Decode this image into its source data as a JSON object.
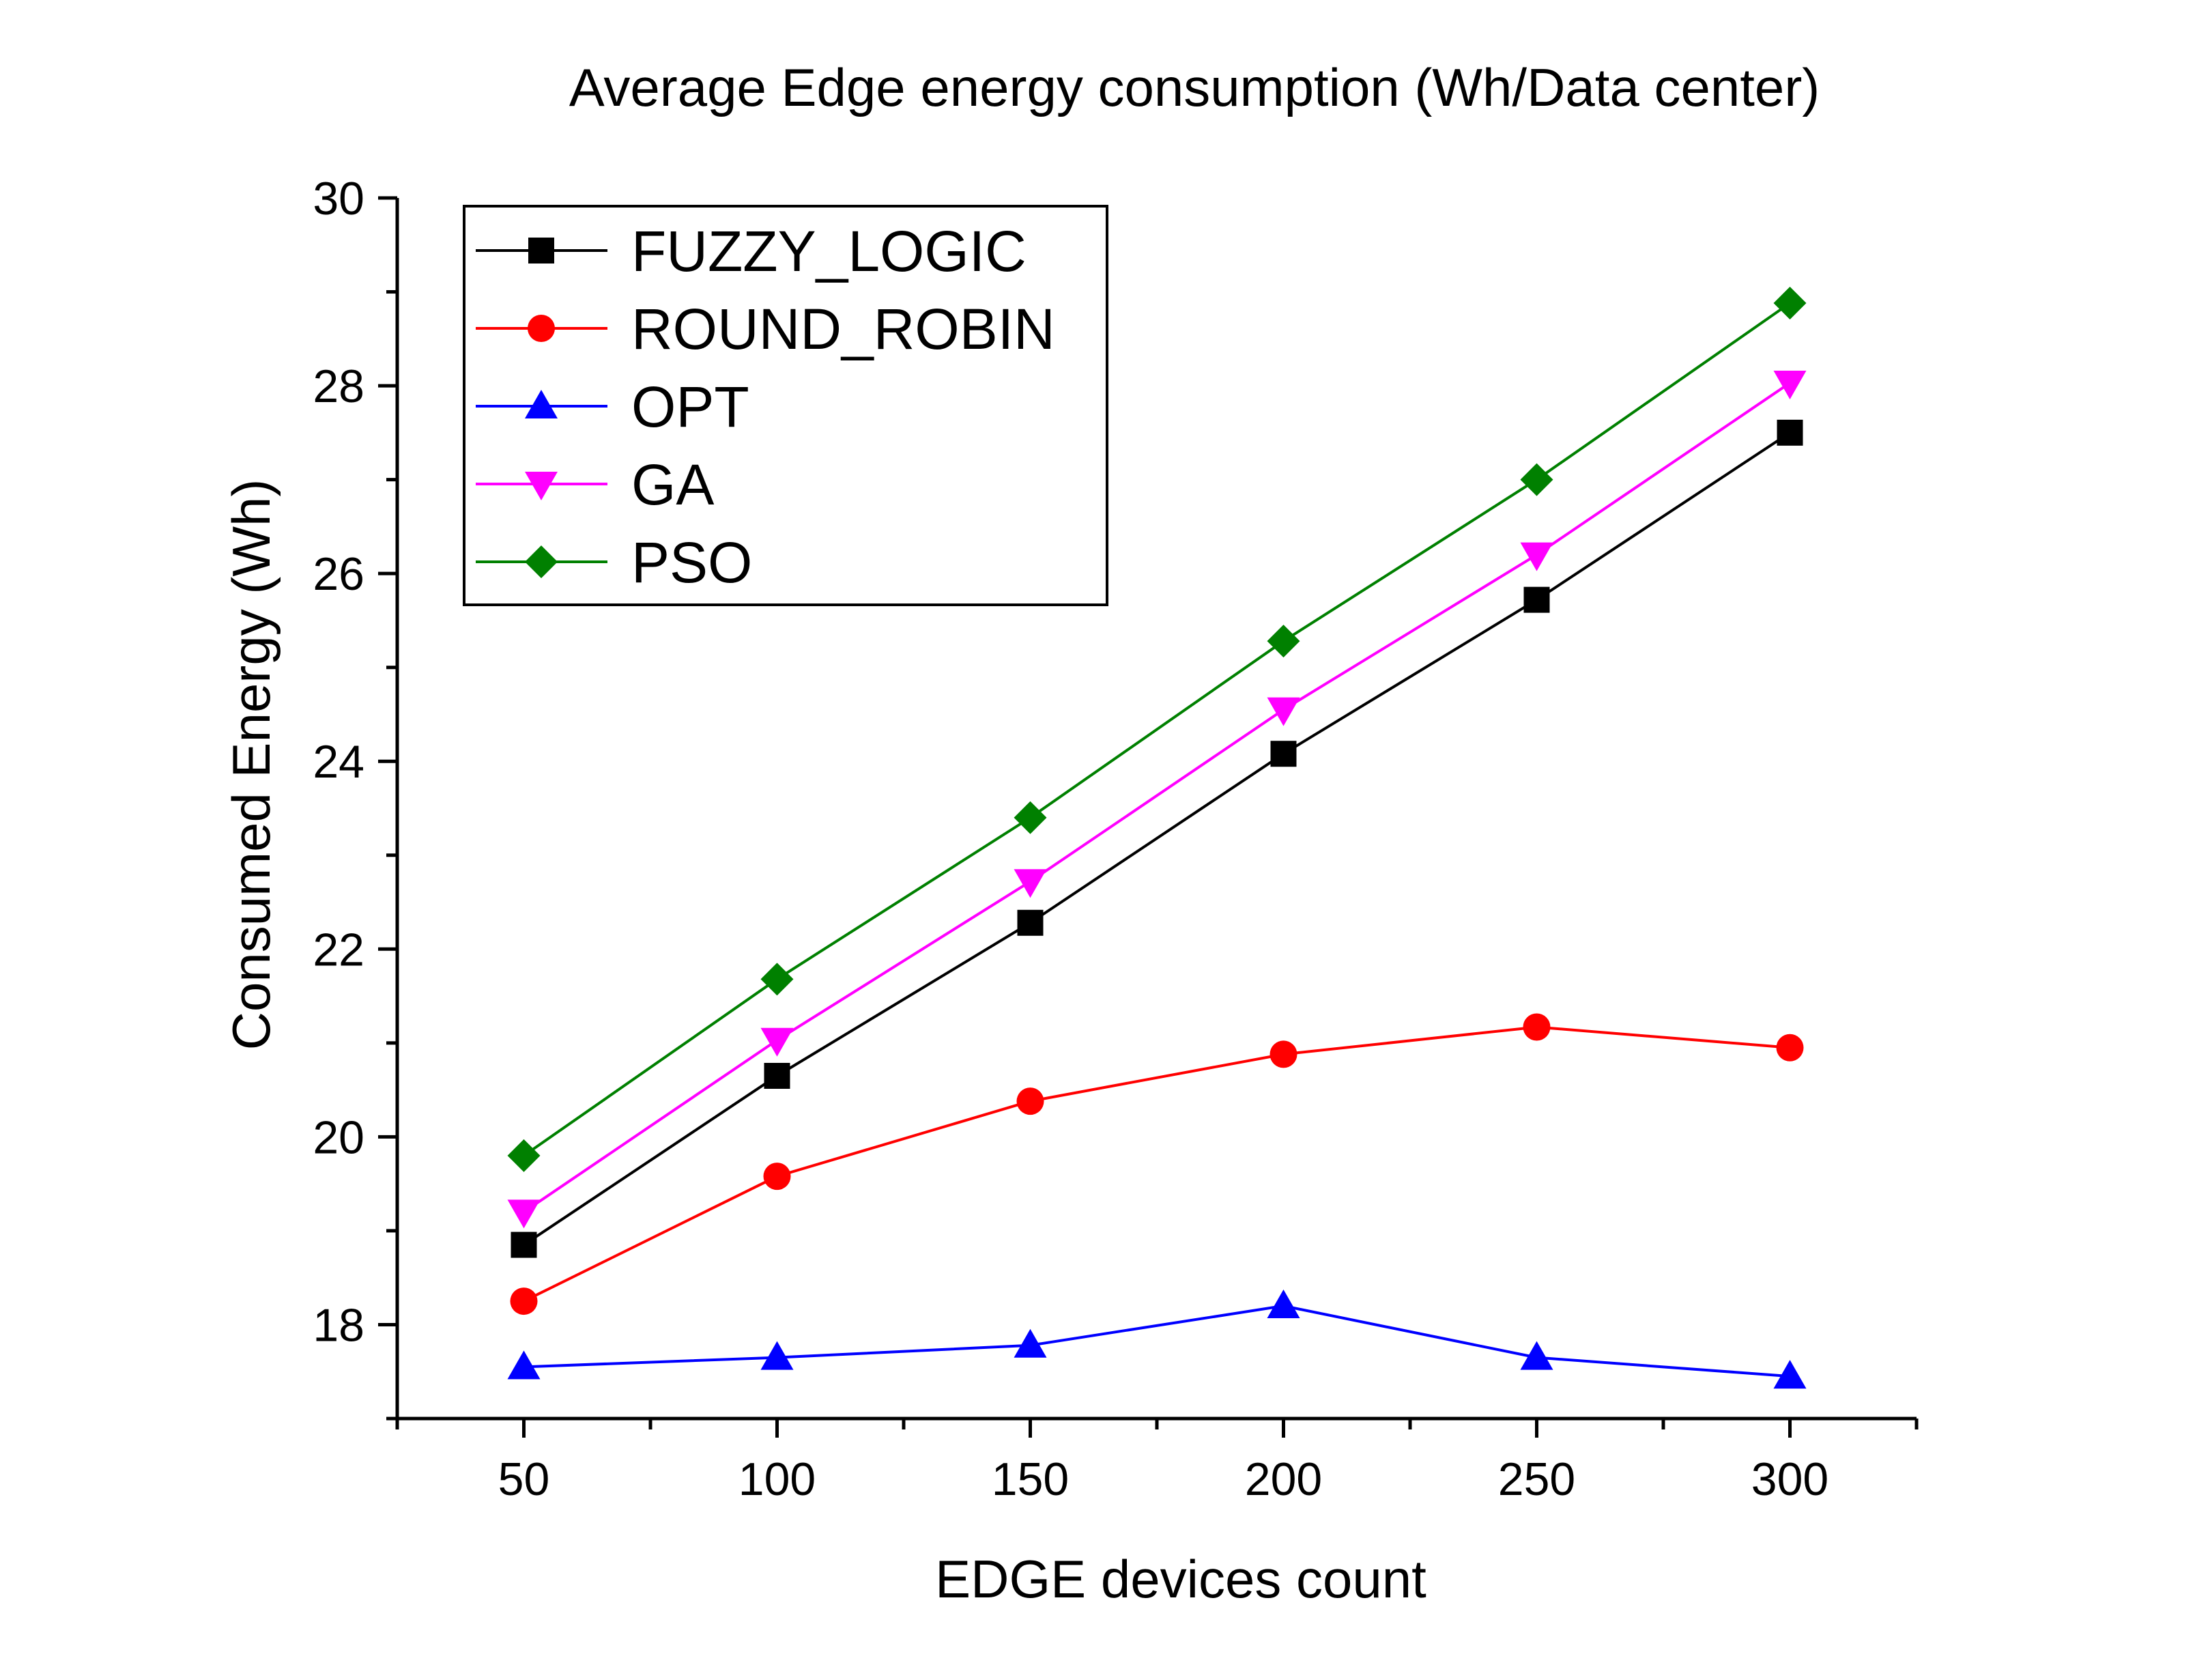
{
  "chart_data": {
    "type": "line",
    "title": "Average Edge energy consumption (Wh/Data center)",
    "xlabel": "EDGE devices count",
    "ylabel": "Consumed Energy (Wh)",
    "x": [
      50,
      100,
      150,
      200,
      250,
      300
    ],
    "x_tick_labels": [
      "50",
      "100",
      "150",
      "200",
      "250",
      "300"
    ],
    "y_tick_labels": [
      "18",
      "20",
      "22",
      "24",
      "26",
      "28",
      "30"
    ],
    "xlim": [
      25,
      325
    ],
    "ylim": [
      17,
      30
    ],
    "grid": false,
    "legend_position": "top-left",
    "series": [
      {
        "name": "FUZZY_LOGIC",
        "color": "#000000",
        "marker": "square",
        "values": [
          18.85,
          20.65,
          22.28,
          24.08,
          25.72,
          27.5
        ]
      },
      {
        "name": "ROUND_ROBIN",
        "color": "#ff0000",
        "marker": "circle",
        "values": [
          18.25,
          19.58,
          20.38,
          20.88,
          21.17,
          20.95
        ]
      },
      {
        "name": "OPT",
        "color": "#0000ff",
        "marker": "triangle-up",
        "values": [
          17.55,
          17.65,
          17.78,
          18.2,
          17.65,
          17.45
        ]
      },
      {
        "name": "GA",
        "color": "#ff00ff",
        "marker": "triangle-down",
        "values": [
          19.2,
          21.03,
          22.72,
          24.55,
          26.2,
          28.03
        ]
      },
      {
        "name": "PSO",
        "color": "#008000",
        "marker": "diamond",
        "values": [
          19.8,
          21.68,
          23.4,
          25.28,
          27.0,
          28.88
        ]
      }
    ]
  }
}
